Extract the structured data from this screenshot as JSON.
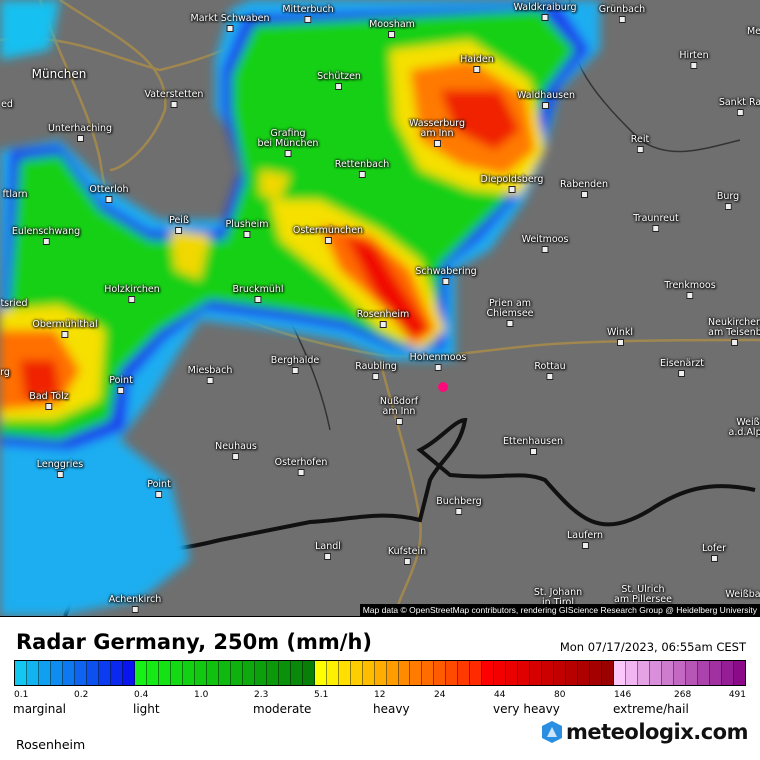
{
  "map": {
    "attribution": "Map data © OpenStreetMap contributors, rendering GIScience Research Group @ Heidelberg University",
    "marker_color": "#ff0a7a",
    "towns": [
      "Markt Schwaben",
      "Mitterbuch",
      "Moosham",
      "Waldkraiburg",
      "Grünbach",
      "Me",
      "München",
      "Vaterstetten",
      "Schützen",
      "Haiden",
      "Hirten",
      "Waldhausen",
      "Sankt Ra",
      "ed",
      "Unterhaching",
      "Grafing",
      "bei München",
      "Wasserburg",
      "am Inn",
      "Reit",
      "Rettenbach",
      "Diepoldsberg",
      "Rabenden",
      "Burg",
      "Otterloh",
      "ftlarn",
      "Traunreut",
      "Peiß",
      "Plusheim",
      "Ostermünchen",
      "Eulenschwang",
      "Weitmoos",
      "Holzkirchen",
      "Bruckmühl",
      "Schwabering",
      "Trenkmoos",
      "Prien am",
      "Chiemsee",
      "tsried",
      "Rosenheim",
      "Obermühlthal",
      "Neukirchen",
      "am Teisenb",
      "Winkl",
      "Hohenmoos",
      "Berghalde",
      "Raubling",
      "Rottau",
      "Eisenärzt",
      "Miesbach",
      "Point",
      "rg",
      "Bad Tölz",
      "Nußdorf",
      "am Inn",
      "Weiß",
      "a.d.Alpe",
      "Ettenhausen",
      "Neuhaus",
      "Osterhofen",
      "Lenggries",
      "Point",
      "Buchberg",
      "Landl",
      "Laufern",
      "Kufstein",
      "Lofer",
      "Achenkirch",
      "St. Johann",
      "in Tirol",
      "St. Ulrich",
      "am Pillersee",
      "Weißba"
    ]
  },
  "legend": {
    "title": "Radar Germany, 250m (mm/h)",
    "datetime": "Mon 07/17/2023, 06:55am CEST",
    "color_groups": [
      {
        "from": "#12c8f0",
        "to": "#0a14f0",
        "count": 10
      },
      {
        "from": "#16f216",
        "to": "#088008",
        "count": 15
      },
      {
        "from": "#ffff00",
        "to": "#ff2a00",
        "count": 14
      },
      {
        "from": "#ff0000",
        "to": "#9a0000",
        "count": 11
      },
      {
        "from": "#fcc8fc",
        "to": "#8a0a8a",
        "count": 11
      }
    ],
    "ticks": [
      "0.1",
      "0.2",
      "0.4",
      "1.0",
      "2.3",
      "5.1",
      "12",
      "24",
      "44",
      "80",
      "146",
      "268",
      "491"
    ],
    "categories": [
      "marginal",
      "light",
      "moderate",
      "heavy",
      "very heavy",
      "extreme/hail"
    ]
  },
  "footer": {
    "location": "Rosenheim",
    "brand": "meteologix.com"
  }
}
